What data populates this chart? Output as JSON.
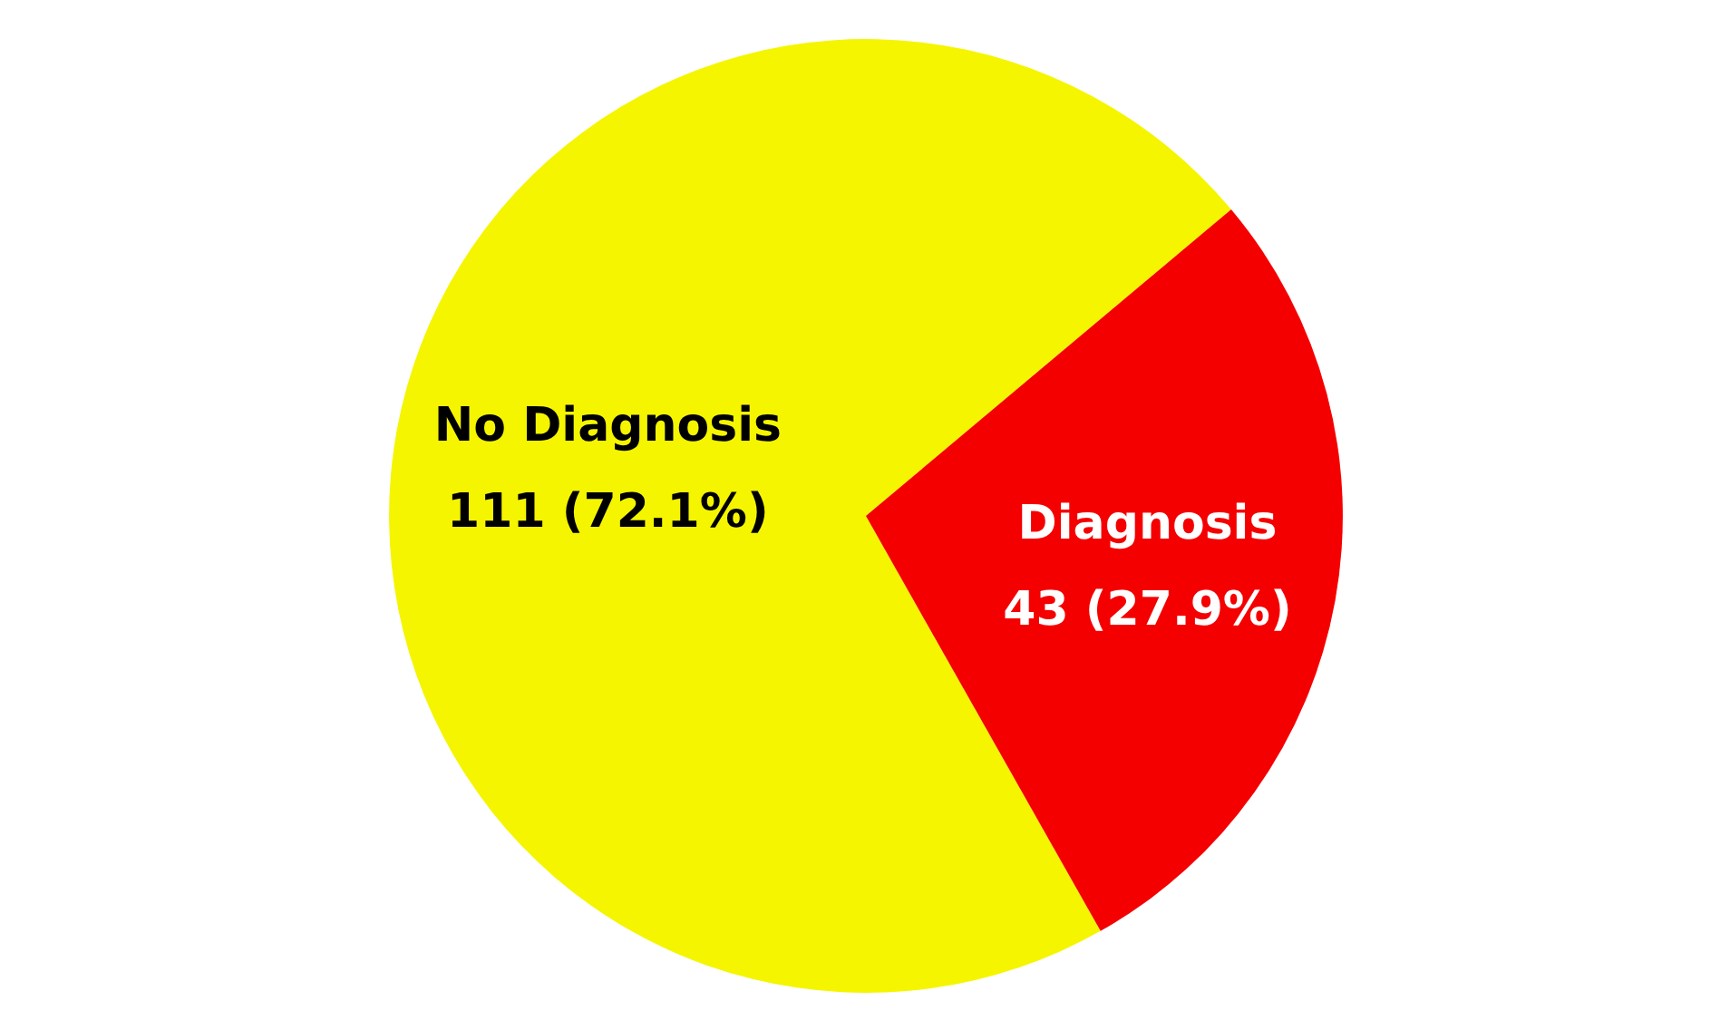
{
  "chart_data": {
    "type": "pie",
    "categories": [
      "No Diagnosis",
      "Diagnosis"
    ],
    "values": [
      111,
      43
    ],
    "value_labels": [
      "111 (72.1%)",
      "43 (27.9%)"
    ],
    "colors": [
      "#f5f500",
      "#f50000"
    ]
  }
}
